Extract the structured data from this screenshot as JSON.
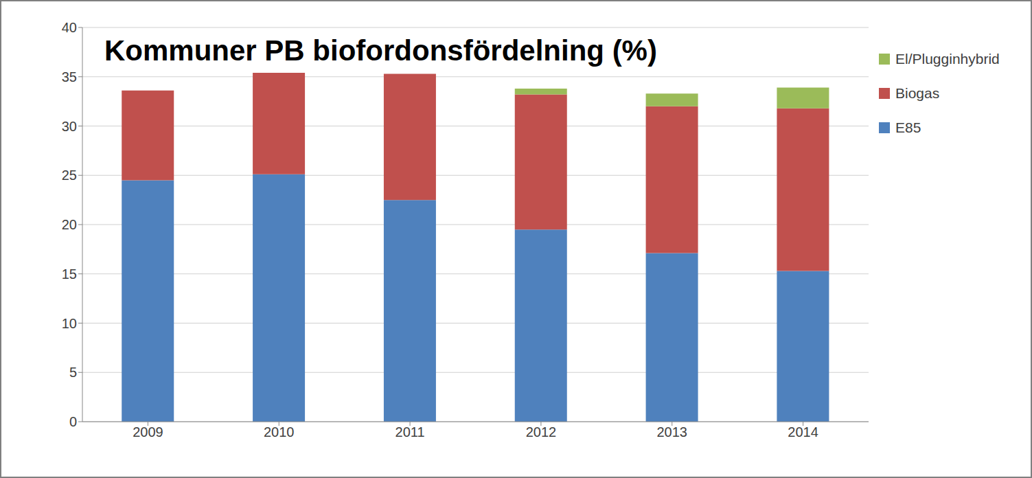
{
  "chart_data": {
    "type": "bar",
    "title": "Kommuner PB biofordonsfördelning (%)",
    "categories": [
      "2009",
      "2010",
      "2011",
      "2012",
      "2013",
      "2014"
    ],
    "series": [
      {
        "name": "E85",
        "color": "#4f81bd",
        "values": [
          24.5,
          25.1,
          22.5,
          19.5,
          17.1,
          15.3
        ]
      },
      {
        "name": "Biogas",
        "color": "#c0504d",
        "values": [
          9.1,
          10.3,
          12.8,
          13.7,
          14.9,
          16.5
        ]
      },
      {
        "name": "El/Plugginhybrid",
        "color": "#9bbb59",
        "values": [
          0,
          0,
          0,
          0.6,
          1.3,
          2.1
        ]
      }
    ],
    "ylim": [
      0,
      40
    ],
    "yticks": [
      0,
      5,
      10,
      15,
      20,
      25,
      30,
      35,
      40
    ],
    "stacked": true,
    "grid": true,
    "legend": "right"
  }
}
